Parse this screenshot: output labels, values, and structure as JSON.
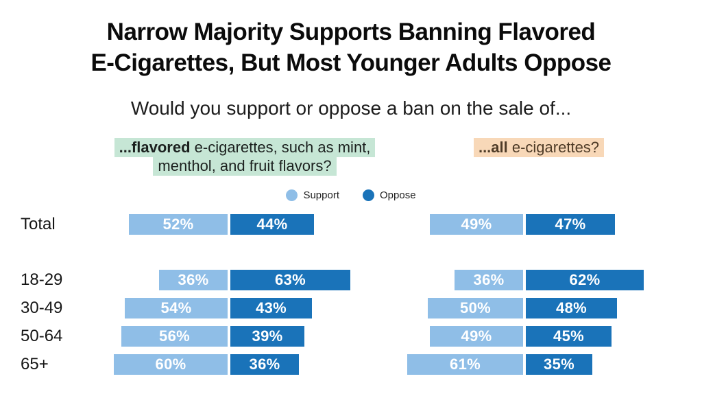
{
  "title": {
    "line1": "Narrow Majority Supports Banning Flavored",
    "line2": "E-Cigarettes, But Most Younger Adults Oppose"
  },
  "subtitle": "Would you support or oppose a ban on the sale of...",
  "questions": {
    "left": {
      "bold_part": "...flavored",
      "line1_rest": " e-cigarettes, such as mint,",
      "line2": "menthol, and fruit flavors?",
      "highlight_color": "#c6e6d5",
      "text_color": "#1b201e"
    },
    "right": {
      "bold_part": "...all",
      "rest": " e-cigarettes?",
      "highlight_color": "#f8d8b8",
      "text_color": "#4e3b27"
    }
  },
  "legend": {
    "support": "Support",
    "oppose": "Oppose"
  },
  "chart_data": {
    "type": "bar",
    "subtype": "horizontal-paired-diverging",
    "title": "Narrow Majority Supports Banning Flavored E-Cigarettes, But Most Younger Adults Oppose",
    "question": "Would you support or oppose a ban on the sale of...",
    "categories": [
      "Total",
      "18-29",
      "30-49",
      "50-64",
      "65+"
    ],
    "unit": "%",
    "legend": [
      "Support",
      "Oppose"
    ],
    "colors": {
      "support": "#8fbee7",
      "oppose": "#1a73b9"
    },
    "panels": [
      {
        "label": "...flavored e-cigarettes, such as mint, menthol, and fruit flavors?",
        "series": [
          {
            "name": "Support",
            "values": [
              52,
              36,
              54,
              56,
              60
            ]
          },
          {
            "name": "Oppose",
            "values": [
              44,
              63,
              43,
              39,
              36
            ]
          }
        ]
      },
      {
        "label": "...all e-cigarettes?",
        "series": [
          {
            "name": "Support",
            "values": [
              49,
              36,
              50,
              49,
              61
            ]
          },
          {
            "name": "Oppose",
            "values": [
              47,
              62,
              48,
              45,
              35
            ]
          }
        ]
      }
    ]
  }
}
